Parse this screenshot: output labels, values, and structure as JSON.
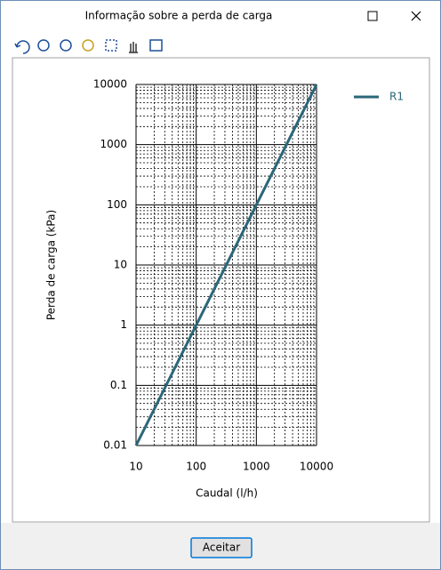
{
  "window": {
    "title": "Informação sobre a perda de carga",
    "button": "Aceitar"
  },
  "chart_data": {
    "type": "line",
    "x_label": "Caudal (l/h)",
    "y_label": "Perda de carga (kPa)",
    "x": [
      10,
      10000
    ],
    "series": [
      {
        "name": "R1",
        "color": "#2b6678",
        "values": [
          0.01,
          10000
        ]
      }
    ],
    "xlim": [
      10,
      10000
    ],
    "ylim": [
      0.01,
      10000
    ],
    "xticks": [
      10,
      100,
      1000,
      10000
    ],
    "yticks": [
      0.01,
      0.1,
      1,
      10,
      100,
      1000,
      10000
    ],
    "xscale": "log",
    "yscale": "log",
    "grid": true,
    "minor_grid": true,
    "legend": "right"
  }
}
